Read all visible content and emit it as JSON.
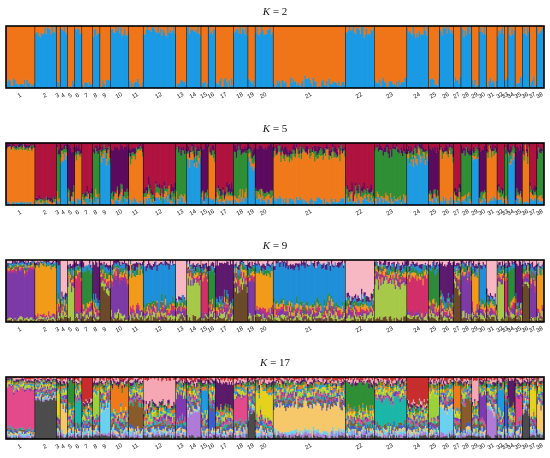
{
  "chart_data": [
    {
      "type": "bar",
      "title_var": "K",
      "title_eq": " = ",
      "title_val": "2",
      "palette": [
        "#f07418",
        "#1b9ae4"
      ],
      "pop_sizes": [
        8,
        6,
        1,
        2,
        2,
        2,
        3,
        2,
        3,
        5,
        4,
        9,
        3,
        4,
        2,
        2,
        5,
        4,
        2,
        5,
        20,
        8,
        9,
        6,
        3,
        4,
        2,
        3,
        2,
        2,
        3,
        2,
        1,
        2,
        2,
        2,
        2,
        2
      ]
    },
    {
      "type": "bar",
      "title_var": "K",
      "title_eq": " = ",
      "title_val": "5",
      "palette": [
        "#b0133f",
        "#5c0a5e",
        "#2f8f35",
        "#f07a1a",
        "#1e9be0"
      ],
      "pop_sizes": [
        8,
        6,
        1,
        2,
        2,
        2,
        3,
        2,
        3,
        5,
        4,
        9,
        3,
        4,
        2,
        2,
        5,
        4,
        2,
        5,
        20,
        8,
        9,
        6,
        3,
        4,
        2,
        3,
        2,
        2,
        3,
        2,
        1,
        2,
        2,
        2,
        2,
        2
      ]
    },
    {
      "type": "bar",
      "title_var": "K",
      "title_eq": " = ",
      "title_val": "9",
      "palette": [
        "#f7b8c4",
        "#5d1a6e",
        "#1f8fd8",
        "#2d8a3a",
        "#f29a1a",
        "#d12f6a",
        "#7c3aa6",
        "#a7c94a",
        "#6a4a2a"
      ],
      "pop_sizes": [
        8,
        6,
        1,
        2,
        2,
        2,
        3,
        2,
        3,
        5,
        4,
        9,
        3,
        4,
        2,
        2,
        5,
        4,
        2,
        5,
        20,
        8,
        9,
        6,
        3,
        4,
        2,
        3,
        2,
        2,
        3,
        2,
        1,
        2,
        2,
        2,
        2,
        2
      ]
    },
    {
      "type": "bar",
      "title_var": "K",
      "title_eq": " = ",
      "title_val": "17",
      "palette": [
        "#c82d2d",
        "#f5a8b3",
        "#5b1a6a",
        "#2f8f35",
        "#f07a1a",
        "#1e9be0",
        "#e6d21c",
        "#9bd13a",
        "#7d3ab0",
        "#e34a8c",
        "#1bb7a8",
        "#8a5a2b",
        "#3d5ccf",
        "#f7c86a",
        "#6bd1f0",
        "#b07ad8",
        "#4c4c4c"
      ],
      "pop_sizes": [
        8,
        6,
        1,
        2,
        2,
        2,
        3,
        2,
        3,
        5,
        4,
        9,
        3,
        4,
        2,
        2,
        5,
        4,
        2,
        5,
        20,
        8,
        9,
        6,
        3,
        4,
        2,
        3,
        2,
        2,
        3,
        2,
        1,
        2,
        2,
        2,
        2,
        2
      ]
    }
  ],
  "population_labels": [
    "1",
    "2",
    "3",
    "4",
    "5",
    "6",
    "7",
    "8",
    "9",
    "10",
    "11",
    "12",
    "13",
    "14",
    "15",
    "16",
    "17",
    "18",
    "19",
    "20",
    "21",
    "22",
    "23",
    "24",
    "25",
    "26",
    "27",
    "28",
    "29",
    "30",
    "31",
    "32",
    "33",
    "34",
    "35",
    "36",
    "37",
    "38"
  ]
}
